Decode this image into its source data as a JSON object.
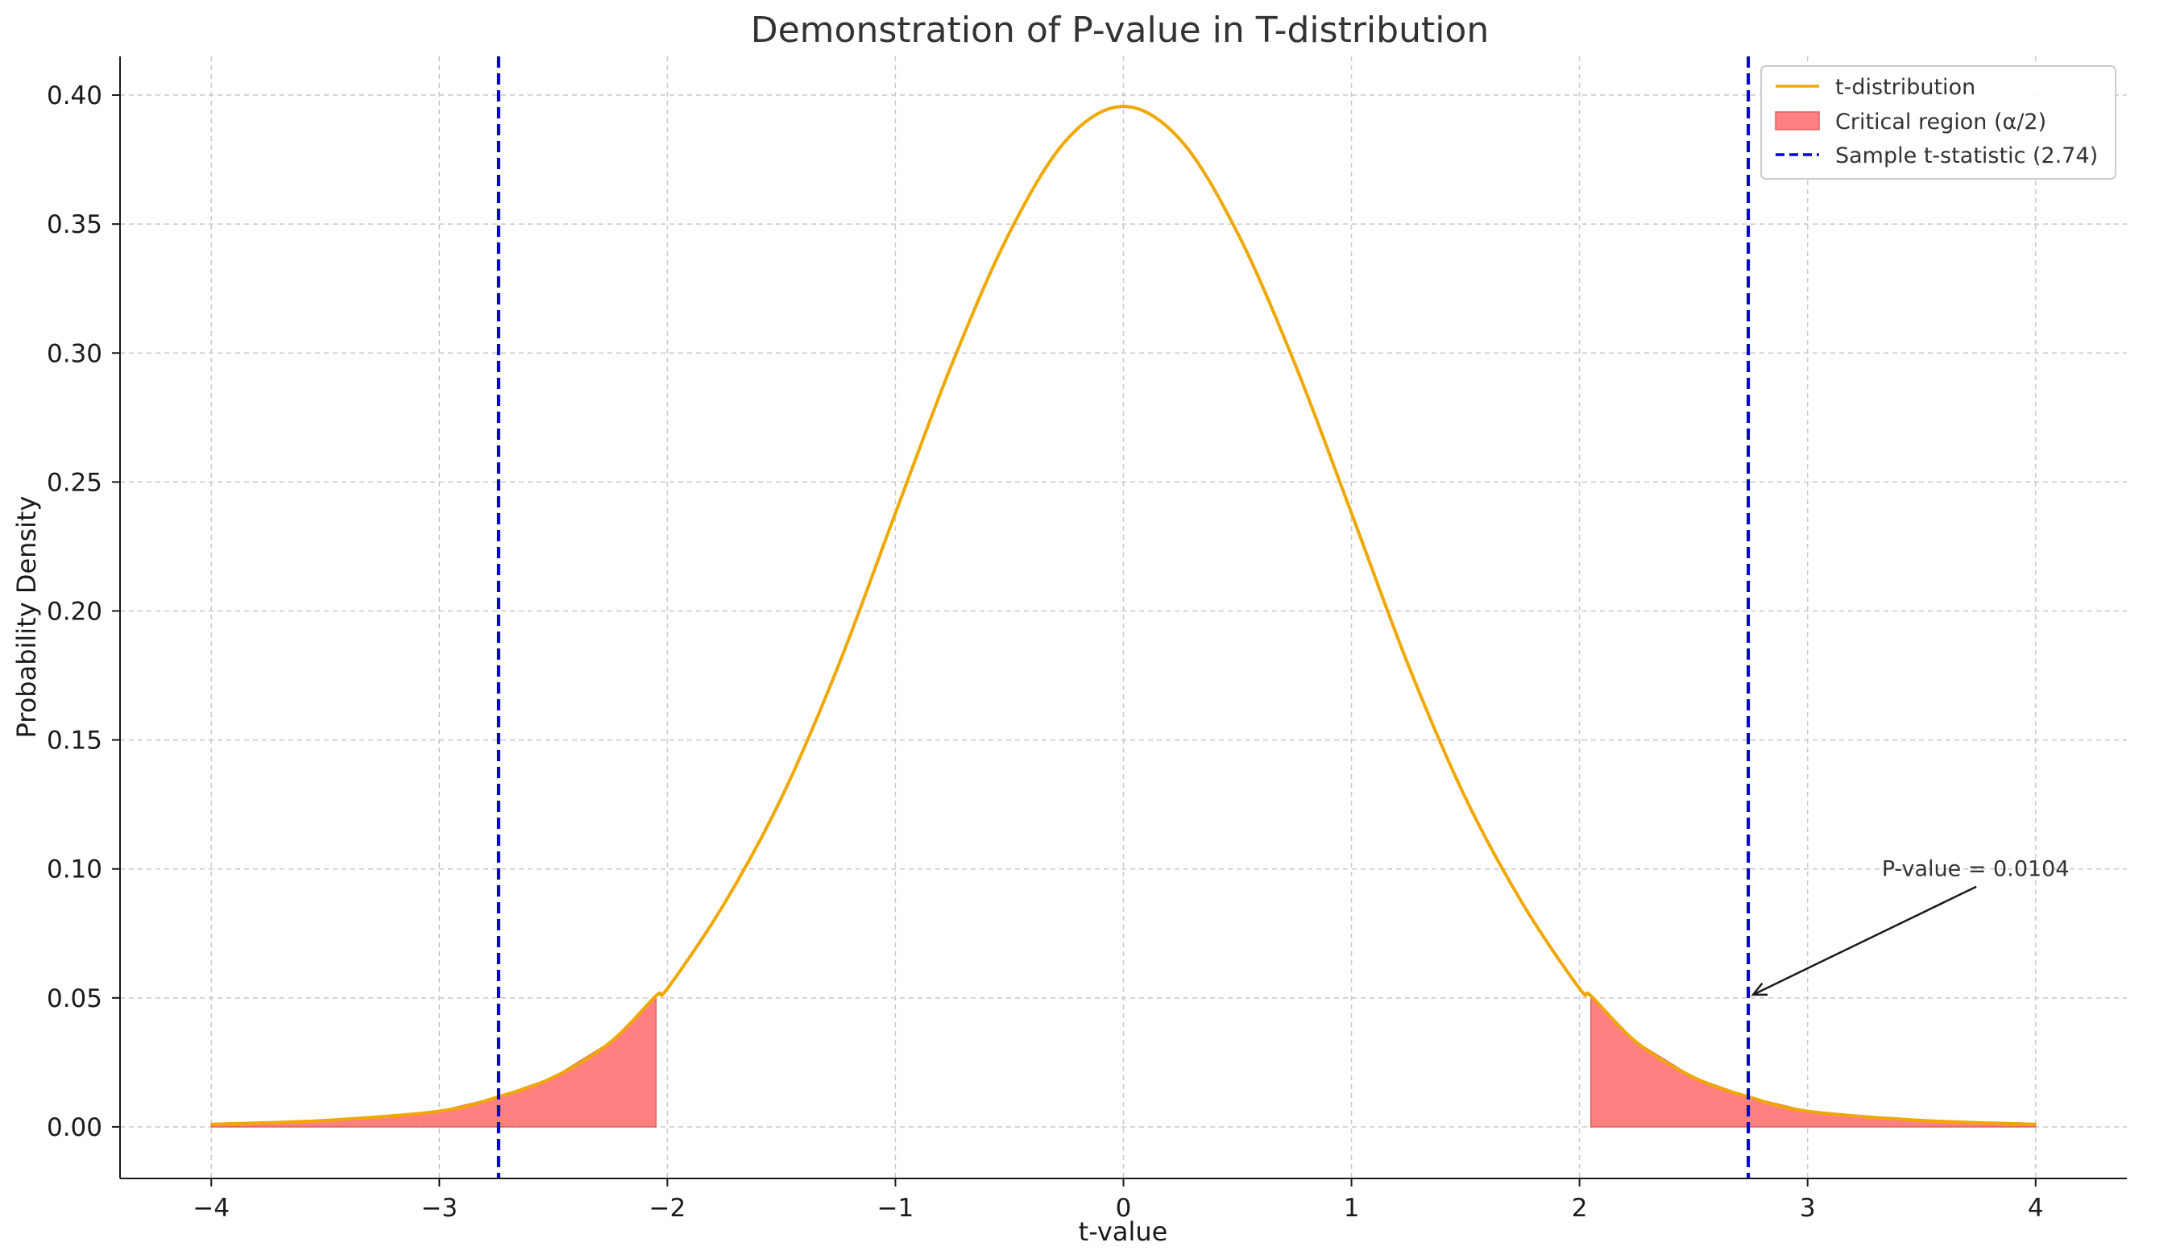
{
  "chart_data": {
    "type": "line",
    "title": "Demonstration of P-value in T-distribution",
    "xlabel": "t-value",
    "ylabel": "Probability Density",
    "xlim": [
      -4.4,
      4.4
    ],
    "ylim": [
      -0.02,
      0.415
    ],
    "x_ticks": [
      -4,
      -3,
      -2,
      -1,
      0,
      1,
      2,
      3,
      4
    ],
    "x_tick_labels": [
      "−4",
      "−3",
      "−2",
      "−1",
      "0",
      "1",
      "2",
      "3",
      "4"
    ],
    "y_ticks": [
      0.0,
      0.05,
      0.1,
      0.15,
      0.2,
      0.25,
      0.3,
      0.35,
      0.4
    ],
    "y_tick_labels": [
      "0.00",
      "0.05",
      "0.10",
      "0.15",
      "0.20",
      "0.25",
      "0.30",
      "0.35",
      "0.40"
    ],
    "grid": true,
    "legend_position": "top-right",
    "series": [
      {
        "name": "t-distribution",
        "kind": "line",
        "color": "#f0a800",
        "x": [
          -4.0,
          -3.5,
          -3.0,
          -2.75,
          -2.5,
          -2.25,
          -2.05,
          -2.0,
          -1.75,
          -1.5,
          -1.25,
          -1.0,
          -0.75,
          -0.5,
          -0.25,
          0.0,
          0.25,
          0.5,
          0.75,
          1.0,
          1.25,
          1.5,
          1.75,
          2.0,
          2.05,
          2.25,
          2.5,
          2.75,
          3.0,
          3.5,
          4.0
        ],
        "y": [
          0.001,
          0.0025,
          0.0061,
          0.0114,
          0.0192,
          0.0328,
          0.0508,
          0.0536,
          0.0866,
          0.1275,
          0.1788,
          0.2379,
          0.2962,
          0.3466,
          0.3826,
          0.3956,
          0.3826,
          0.3466,
          0.2962,
          0.2379,
          0.1788,
          0.1275,
          0.0866,
          0.0536,
          0.0508,
          0.0328,
          0.0192,
          0.0114,
          0.0061,
          0.0025,
          0.001
        ]
      },
      {
        "name": "Critical region (α/2)",
        "kind": "area",
        "color": "#ff8080",
        "ranges": [
          [
            -4.0,
            -2.05
          ],
          [
            2.05,
            4.0
          ]
        ]
      },
      {
        "name": "Sample t-statistic (2.74)",
        "kind": "vline",
        "color": "#0000cc",
        "x_values": [
          -2.74,
          2.74
        ]
      }
    ],
    "annotations": [
      {
        "text": "P-value = 0.0104",
        "xy": [
          2.74,
          0.05
        ],
        "xytext": [
          3.74,
          0.1
        ]
      }
    ]
  }
}
